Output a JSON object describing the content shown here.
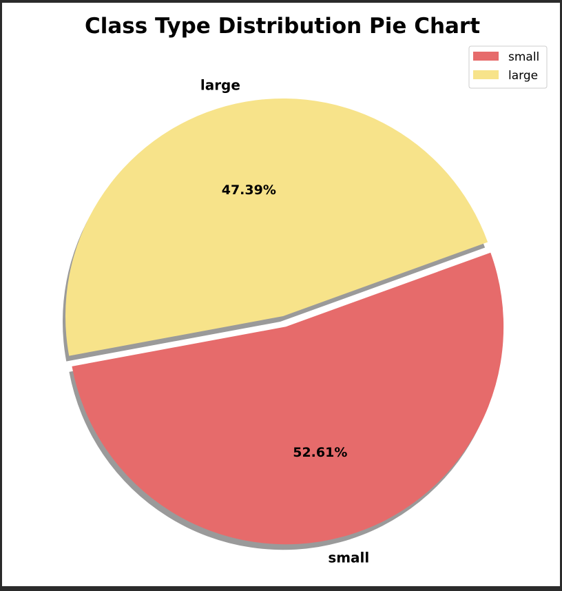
{
  "chart_data": {
    "type": "pie",
    "title": "Class Type Distribution Pie Chart",
    "slices": [
      {
        "label": "small",
        "value": 52.61,
        "pct_label": "52.61%",
        "color": "#e66b6b",
        "exploded": true
      },
      {
        "label": "large",
        "value": 47.39,
        "pct_label": "47.39%",
        "color": "#f7e38a",
        "exploded": false
      }
    ],
    "shadow": true,
    "shadow_color": "#9a9a9a",
    "legend": {
      "placement": "top-right",
      "entries": [
        {
          "label": "small",
          "color": "#e66b6b"
        },
        {
          "label": "large",
          "color": "#f7e38a"
        }
      ]
    }
  }
}
